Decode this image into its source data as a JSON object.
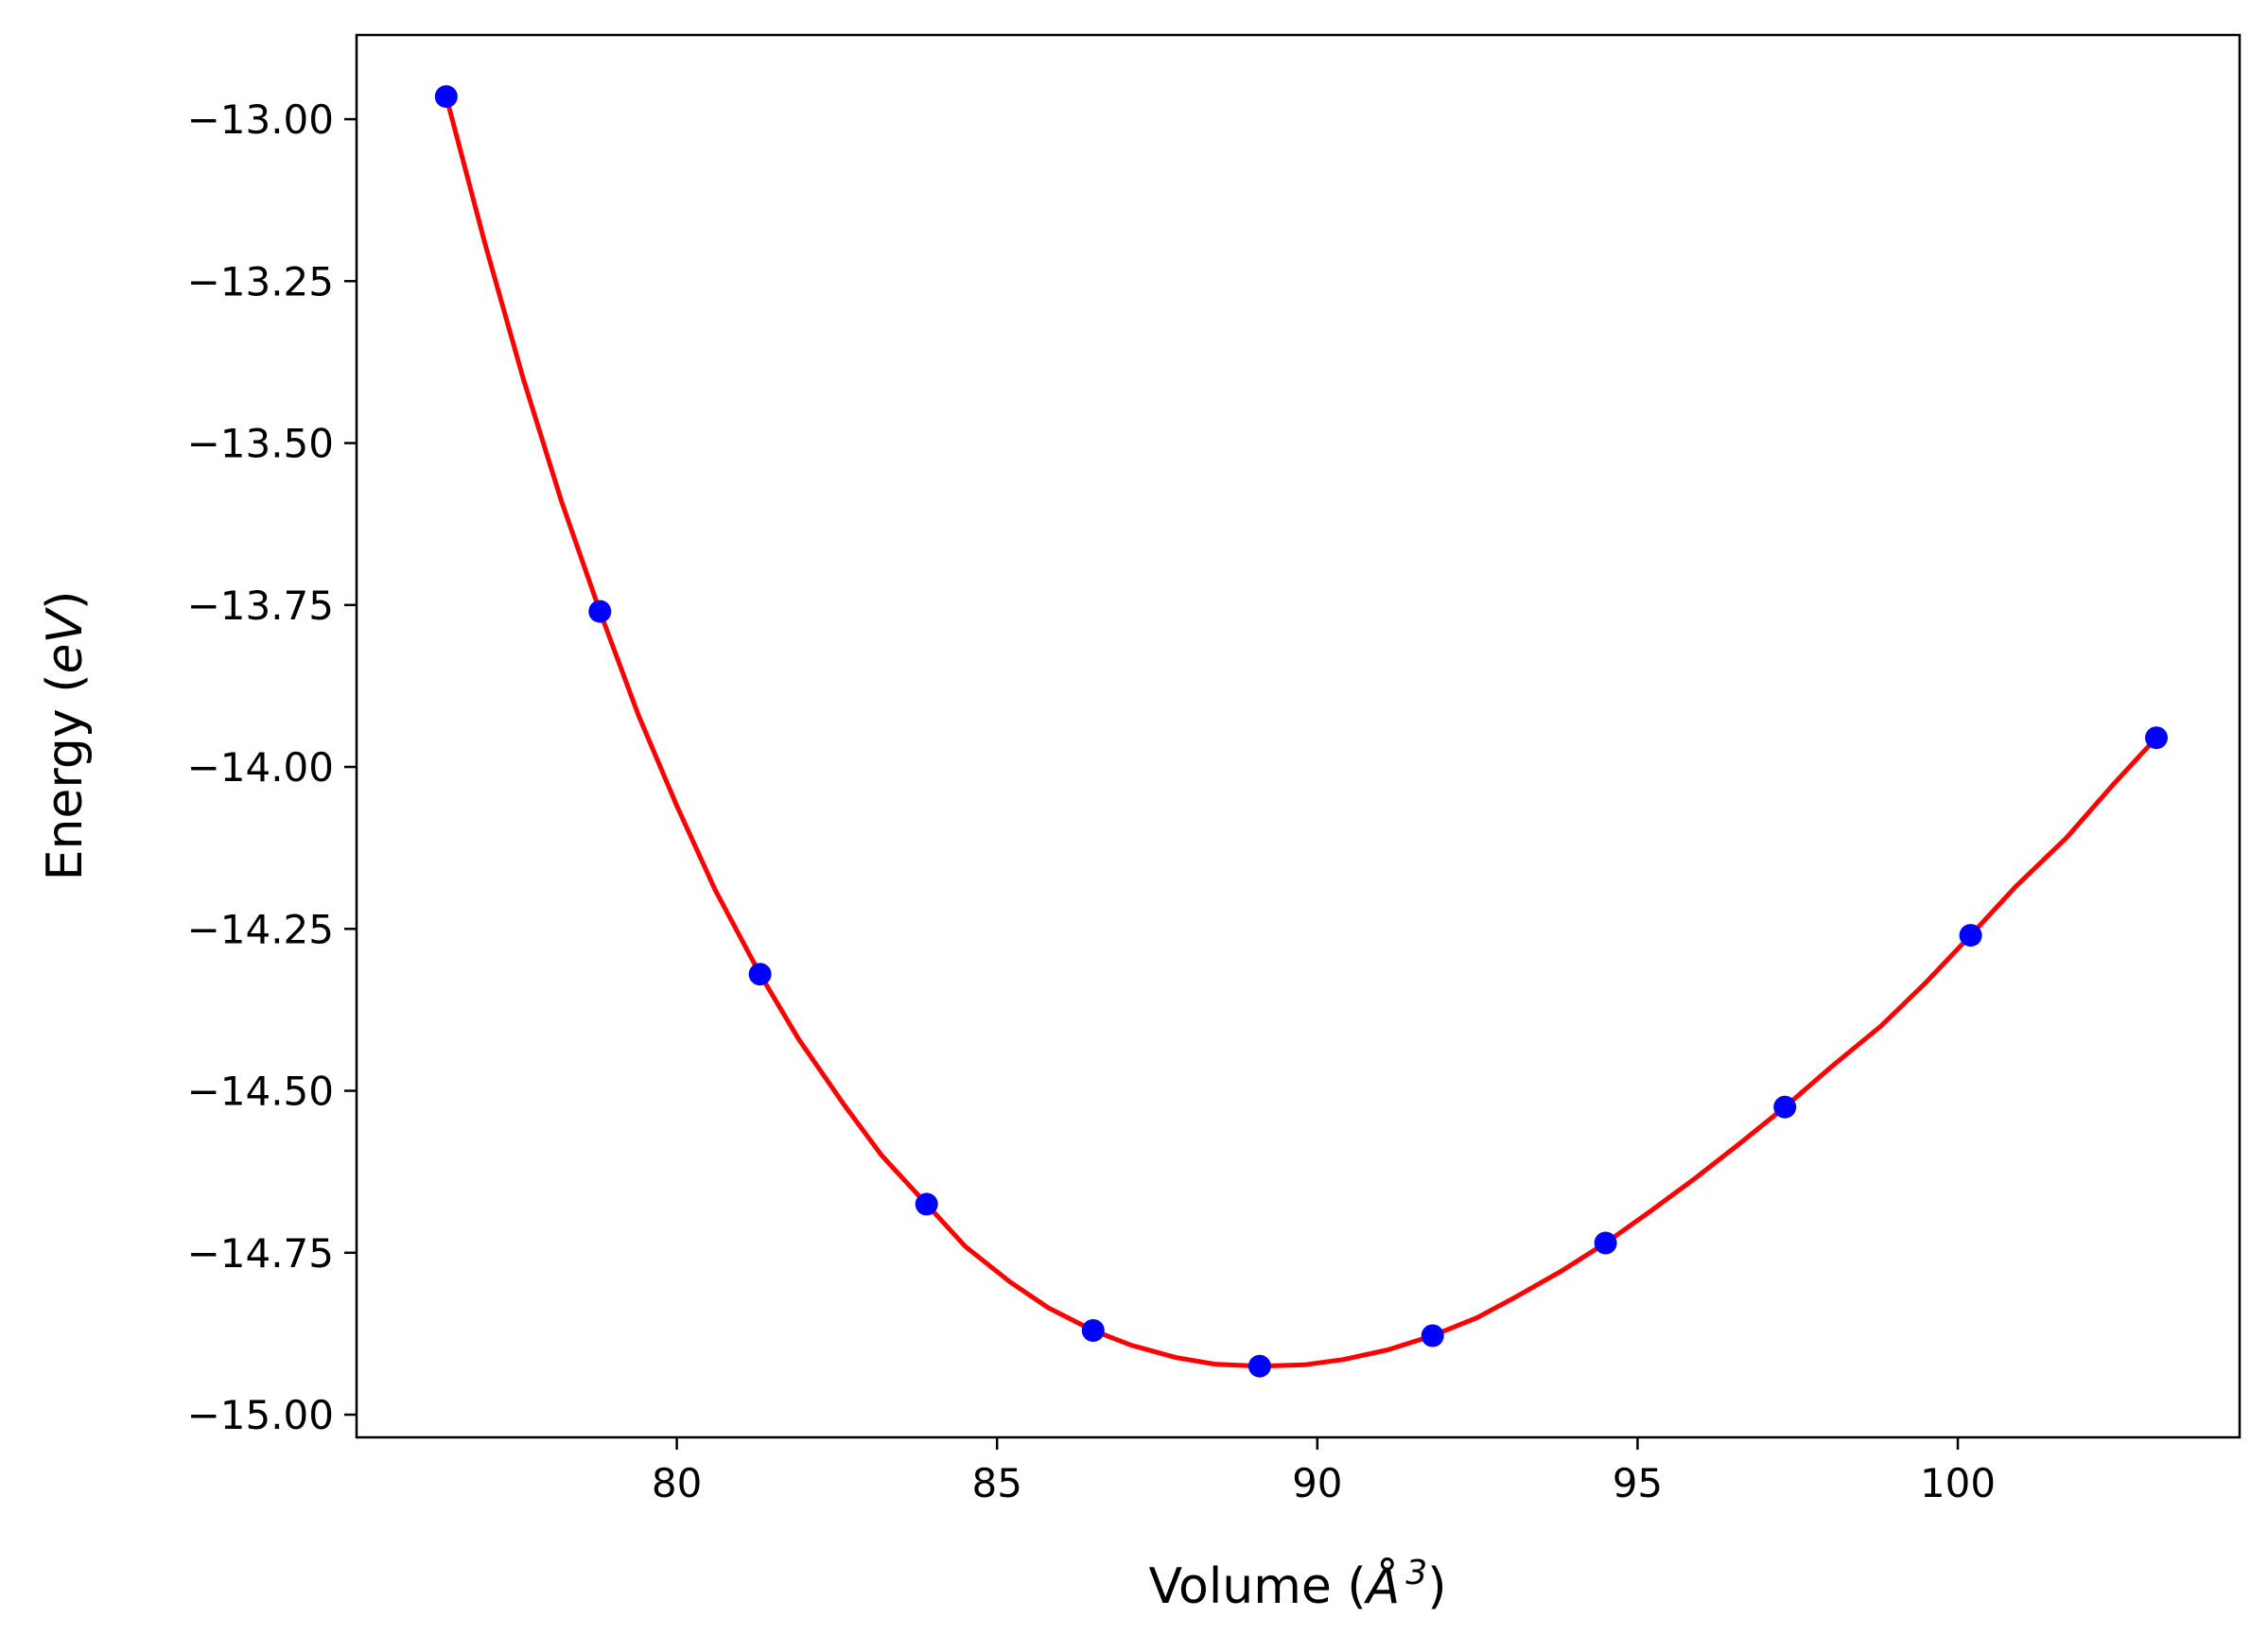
{
  "chart_data": {
    "type": "scatter",
    "xlabel": {
      "prefix": "Volume (",
      "symbol": "Å",
      "superscript": "3",
      "suffix": ")"
    },
    "ylabel": {
      "prefix": "Energy (",
      "unit": "eV",
      "suffix": ")"
    },
    "xlim": [
      75.0,
      104.4
    ],
    "ylim": [
      -15.035,
      -12.87
    ],
    "x_ticks": [
      80,
      85,
      90,
      95,
      100
    ],
    "x_tick_labels": [
      "80",
      "85",
      "90",
      "95",
      "100"
    ],
    "y_ticks": [
      -13.0,
      -13.25,
      -13.5,
      -13.75,
      -14.0,
      -14.25,
      -14.5,
      -14.75,
      -15.0
    ],
    "y_tick_labels": [
      "−13.00",
      "−13.25",
      "−13.50",
      "−13.75",
      "−14.00",
      "−14.25",
      "−14.50",
      "−14.75",
      "−15.00"
    ],
    "grid": false,
    "series": [
      {
        "kind": "points",
        "color": "#0000ff",
        "x": [
          76.4,
          78.8,
          81.3,
          83.9,
          86.5,
          89.1,
          91.8,
          94.5,
          97.3,
          100.2,
          103.1
        ],
        "y": [
          -12.965,
          -13.76,
          -14.32,
          -14.675,
          -14.87,
          -14.925,
          -14.878,
          -14.735,
          -14.525,
          -14.26,
          -13.955
        ]
      },
      {
        "kind": "fit-curve",
        "color": "#ff0000",
        "x": [
          76.4,
          77.0,
          77.6,
          78.2,
          78.8,
          79.4,
          80.0,
          80.6,
          81.3,
          81.9,
          82.6,
          83.2,
          83.9,
          84.5,
          85.2,
          85.8,
          86.5,
          87.1,
          87.8,
          88.4,
          89.1,
          89.8,
          90.4,
          91.1,
          91.8,
          92.5,
          93.1,
          93.8,
          94.5,
          95.2,
          95.9,
          96.6,
          97.3,
          98.0,
          98.8,
          99.5,
          100.2,
          100.9,
          101.7,
          102.4,
          103.1
        ],
        "y": [
          -12.965,
          -13.19,
          -13.4,
          -13.59,
          -13.76,
          -13.92,
          -14.06,
          -14.19,
          -14.32,
          -14.42,
          -14.52,
          -14.6,
          -14.675,
          -14.74,
          -14.795,
          -14.835,
          -14.87,
          -14.893,
          -14.912,
          -14.922,
          -14.925,
          -14.923,
          -14.915,
          -14.9,
          -14.878,
          -14.85,
          -14.818,
          -14.779,
          -14.735,
          -14.686,
          -14.635,
          -14.581,
          -14.525,
          -14.465,
          -14.4,
          -14.333,
          -14.26,
          -14.185,
          -14.109,
          -14.03,
          -13.955
        ]
      }
    ]
  }
}
